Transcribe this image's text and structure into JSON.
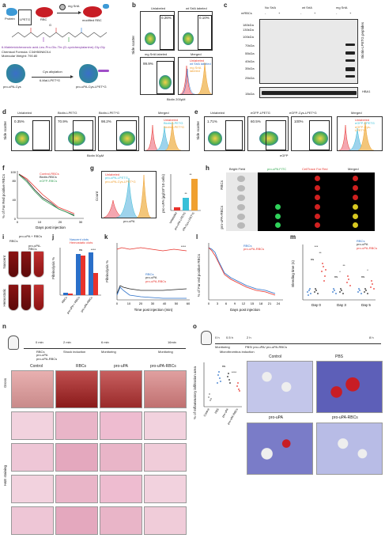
{
  "labels": {
    "a": "a",
    "b": "b",
    "c": "c",
    "d": "d",
    "e": "e",
    "f": "f",
    "g": "g",
    "h": "h",
    "i": "i",
    "j": "j",
    "k": "k",
    "l": "l",
    "m": "m",
    "n": "n",
    "o": "o"
  },
  "panel_a": {
    "protein": "Protein",
    "lpetg": "LPETG",
    "rbc": "RBC",
    "mg_srta": "mg SrtA",
    "modified_rbc": "modified RBC",
    "g": "G",
    "maleimide": "6-Maleimidohexanoic acid-Leu-Pro-Glu-Thr-(D-cyclohexylalanine)-Gly-Gly",
    "formula": "Chemical Formula: C34H50N6O14",
    "mw": "Molecular Weight: 790.80",
    "pro_upa_cys": "pro-uPA-Cys",
    "cys_alkylation": "Cys alkylation",
    "mal_lpetg": "6-Mal-LPET*G",
    "pro_upa_cys_lpetg": "pro-uPA-Cys-LPET*G"
  },
  "panel_b": {
    "titles": [
      "Unlabeled",
      "wt SrtA labeled",
      "mg SrtA labeled",
      "Merged"
    ],
    "percents": [
      "0.26%",
      "0.10%",
      "99.9%"
    ],
    "ylabel": "Side scatter",
    "xlabel": "Biotin 200µM",
    "legend": [
      "Unlabeled",
      "wt SrtA labeled",
      "mg SrtA labeled"
    ]
  },
  "panel_c": {
    "groups": [
      "No SrtA",
      "wt SrtA",
      "mg SrtA"
    ],
    "mrbcs": "mRBCs",
    "signs": [
      "-",
      "+",
      "-",
      "+",
      "-",
      "+"
    ],
    "markers": [
      "180kDa",
      "130kDa",
      "100kDa",
      "70kDa",
      "55kDa",
      "40kDa",
      "35kDa",
      "25kDa",
      "15kDa"
    ],
    "right_label": "Biotin-LPETG peptides",
    "hba1": "HBA1"
  },
  "panel_d": {
    "titles": [
      "Unlabeled",
      "Biotin-LPETG",
      "Biotin-LPET*G",
      "Merged"
    ],
    "percents": [
      "0.35%",
      "70.9%",
      "98.2%"
    ],
    "ylabel": "Side scatter",
    "xlabel": "Biotin 50µM",
    "legend": [
      "Unlabeled",
      "Biotin-LPETG",
      "Biotin-LPET*G"
    ]
  },
  "panel_e": {
    "titles": [
      "Unlabeled",
      "eGFP-LPETG",
      "eGFP-Cys-LPET*G",
      "Merged"
    ],
    "percents": [
      "1.71%",
      "60.5%",
      "100%"
    ],
    "ylabel": "Side scatter",
    "xlabel": "eGFP",
    "legend": [
      "Unlabeled",
      "eGFP-LPETG",
      "eGFP-Cys-LPET*G"
    ]
  },
  "panel_f": {
    "ylabel": "% of Far Red positive RBCs",
    "xlabel": "Days post injection",
    "legend": [
      "Control-RBCs",
      "Biotin-RBCs",
      "eGFP-RBCs"
    ],
    "xticks": [
      "0",
      "10",
      "20",
      "30"
    ],
    "yticks": [
      "0",
      "20",
      "40",
      "60",
      "80",
      "100"
    ]
  },
  "panel_g": {
    "legend": [
      "Unlabeled",
      "pro-uPA-LPETG",
      "pro-uPA-Cys-LPET*G"
    ],
    "xlabel": "pro-uPA",
    "ylabel": "Count",
    "bar_ylabel": "pro-uPA (µg/10^10 cells)",
    "bar_categories": [
      "Unlabeled",
      "pro-uPA-LPETG",
      "pro-uPA-Cys-LPET*G"
    ],
    "sig": [
      "**",
      "**"
    ]
  },
  "panel_h": {
    "columns": [
      "Bright Field",
      "pro-uPA FITC",
      "CellTrace Far Red",
      "Merged"
    ],
    "rows": [
      "RBCs",
      "pro-uPA-RBCs"
    ]
  },
  "panel_i": {
    "column_labels": [
      "RBCs",
      "pro-uPA + RBCs",
      "pro-uPA-RBCs"
    ],
    "row_labels": [
      "Nascent",
      "Hemostatic"
    ]
  },
  "panel_j": {
    "ylabel": "Fibrinolysis %",
    "legend": [
      "Nascent clots",
      "Hemostatic clots"
    ],
    "categories": [
      "RBCs",
      "pro-uPA + RBCs",
      "pro-uPA-RBCs"
    ],
    "sig": [
      "ns",
      "****"
    ]
  },
  "panel_k": {
    "ylabel": "Fibrinolysis %",
    "xlabel": "Time post injection (min)",
    "legend": [
      "RBCs",
      "pro-uPA",
      "pro-uPA-RBCs"
    ],
    "xticks": [
      "0",
      "10",
      "20",
      "30",
      "40",
      "50",
      "60"
    ],
    "sig": "****"
  },
  "panel_l": {
    "ylabel": "% of Far red positive RBCs",
    "xlabel": "Days post injection",
    "legend": [
      "RBCs",
      "pro-uPA-RBCs"
    ],
    "xticks": [
      "0",
      "3",
      "6",
      "9",
      "12",
      "15",
      "18",
      "21",
      "24"
    ]
  },
  "panel_m": {
    "ylabel": "Bleeding time (s)",
    "legend": [
      "RBCs",
      "pro-uPA",
      "pro-uPA-RBCs"
    ],
    "days": [
      "Day 0",
      "Day 3",
      "Day 5"
    ],
    "sig": [
      "***",
      "**",
      "ns",
      "**",
      "*",
      "ns",
      "*",
      "ns"
    ]
  },
  "panel_n": {
    "timeline_times": [
      "0 min",
      "2 min",
      "6 min",
      "16min"
    ],
    "timeline_steps": [
      "RBCs\npro-uPA\npro-uPA-RBCs",
      "Shock induction",
      "Monitoring",
      "Monitoring"
    ],
    "columns": [
      "Control",
      "RBCs",
      "pro-uPA",
      "pro-uPA-RBCs"
    ],
    "rows": [
      "Gross",
      "H&E staining"
    ]
  },
  "panel_o": {
    "timeline_times": [
      "0 h",
      "0.5 h",
      "2 h",
      "8 h"
    ],
    "timeline_steps": [
      "Monitoring",
      "PBS/ pro-uPA/ pro-uPA-RBCs",
      "Microthrombus induction"
    ],
    "ylabel": "% of Inflammatory infiltration area",
    "categories": [
      "Control",
      "PBS",
      "pro-uPA",
      "pro-uPA-RBCs"
    ],
    "sig": [
      "ns",
      "****"
    ],
    "image_labels": [
      "Control",
      "PBS",
      "pro-uPA",
      "pro-uPA-RBCs"
    ]
  },
  "colors": {
    "red": "#e8322b",
    "black": "#222222",
    "blue": "#2a6fc9",
    "green": "#3aa35a",
    "orange": "#f0a030",
    "pink": "#e28aa0",
    "cyan": "#39c0d8",
    "lightblue": "#4a9be0",
    "darkred": "#8a1414",
    "he_pink": "#e9b5c8",
    "lung_blue": "#5d5fb8"
  }
}
